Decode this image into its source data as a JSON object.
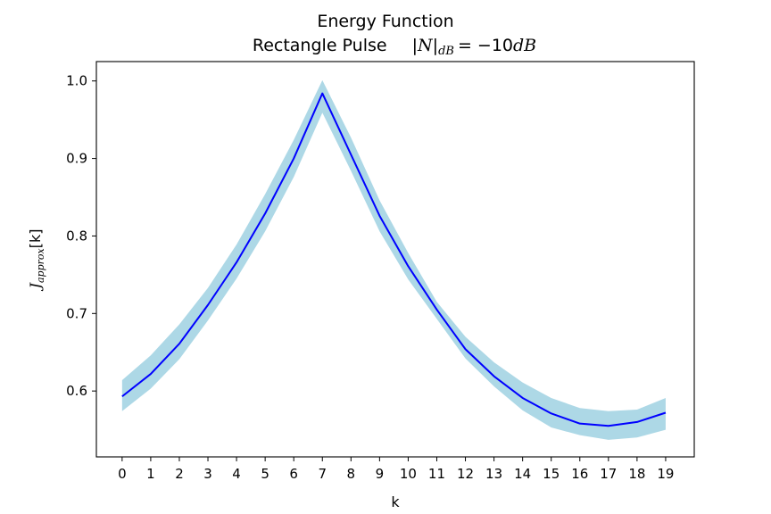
{
  "chart_data": {
    "type": "line",
    "title": "Energy Function",
    "subtitle_prefix": "Rectangle Pulse",
    "subtitle_math": {
      "symbol": "N",
      "subscript": "dB",
      "equals": "= −10",
      "unit_symbol": "dB"
    },
    "xlabel": "k",
    "ylabel": {
      "symbol": "J",
      "subscript": "approx",
      "argument": "[k]"
    },
    "xlim": [
      -0.9,
      20.0
    ],
    "ylim": [
      0.515,
      1.025
    ],
    "x_ticks": [
      0,
      1,
      2,
      3,
      4,
      5,
      6,
      7,
      8,
      9,
      10,
      11,
      12,
      13,
      14,
      15,
      16,
      17,
      18,
      19
    ],
    "y_ticks": [
      0.6,
      0.7,
      0.8,
      0.9,
      1.0
    ],
    "y_tick_labels": [
      "0.6",
      "0.7",
      "0.8",
      "0.9",
      "1.0"
    ],
    "grid": false,
    "x": [
      0,
      1,
      2,
      3,
      4,
      5,
      6,
      7,
      8,
      9,
      10,
      11,
      12,
      13,
      14,
      15,
      16,
      17,
      18,
      19
    ],
    "series": [
      {
        "values": [
          0.593,
          0.622,
          0.661,
          0.711,
          0.766,
          0.829,
          0.9,
          0.984,
          0.905,
          0.826,
          0.761,
          0.705,
          0.654,
          0.619,
          0.591,
          0.571,
          0.558,
          0.555,
          0.56,
          0.572
        ],
        "color": "#0000ff"
      }
    ],
    "band": {
      "upper": [
        0.614,
        0.646,
        0.686,
        0.733,
        0.789,
        0.854,
        0.924,
        1.001,
        0.927,
        0.846,
        0.778,
        0.715,
        0.67,
        0.637,
        0.611,
        0.591,
        0.578,
        0.574,
        0.576,
        0.591
      ],
      "lower": [
        0.574,
        0.603,
        0.641,
        0.691,
        0.745,
        0.806,
        0.876,
        0.959,
        0.884,
        0.806,
        0.744,
        0.693,
        0.642,
        0.606,
        0.575,
        0.553,
        0.543,
        0.537,
        0.54,
        0.55
      ],
      "color": "#add8e6"
    }
  }
}
